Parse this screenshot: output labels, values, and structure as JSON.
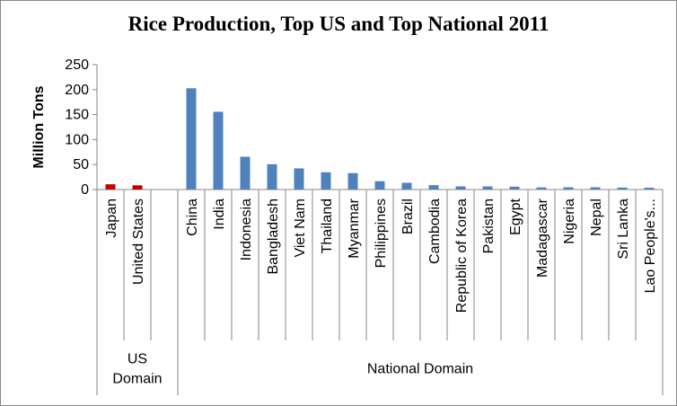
{
  "chart_data": {
    "type": "bar",
    "title": "Rice Production, Top US and Top National 2011",
    "ylabel": "Million Tons",
    "xlabel": "",
    "ylim": [
      0,
      250
    ],
    "yticks": [
      0,
      50,
      100,
      150,
      200,
      250
    ],
    "grid": false,
    "legend": "none",
    "categories": [
      "Japan",
      "United States",
      "",
      "China",
      "India",
      "Indonesia",
      "Bangladesh",
      "Viet Nam",
      "Thailand",
      "Myanmar",
      "Philippines",
      "Brazil",
      "Cambodia",
      "Republic of Korea",
      "Pakistan",
      "Egypt",
      "Madagascar",
      "Nigeria",
      "Nepal",
      "Sri Lanka",
      "Lao People's..."
    ],
    "groups": [
      {
        "label_lines": [
          "US",
          "Domain"
        ],
        "start": 0,
        "end": 3,
        "color": "#c00000"
      },
      {
        "label_lines": [
          "National Domain"
        ],
        "start": 3,
        "end": 21,
        "color": "#4f81bd"
      }
    ],
    "series": [
      {
        "values": [
          10.5,
          8.4,
          null,
          202.7,
          155.7,
          65.7,
          50.6,
          42.3,
          34.6,
          32.8,
          16.7,
          13.5,
          8.8,
          6.3,
          6.2,
          5.7,
          4.3,
          4.5,
          4.5,
          3.9,
          3.6
        ]
      }
    ]
  }
}
